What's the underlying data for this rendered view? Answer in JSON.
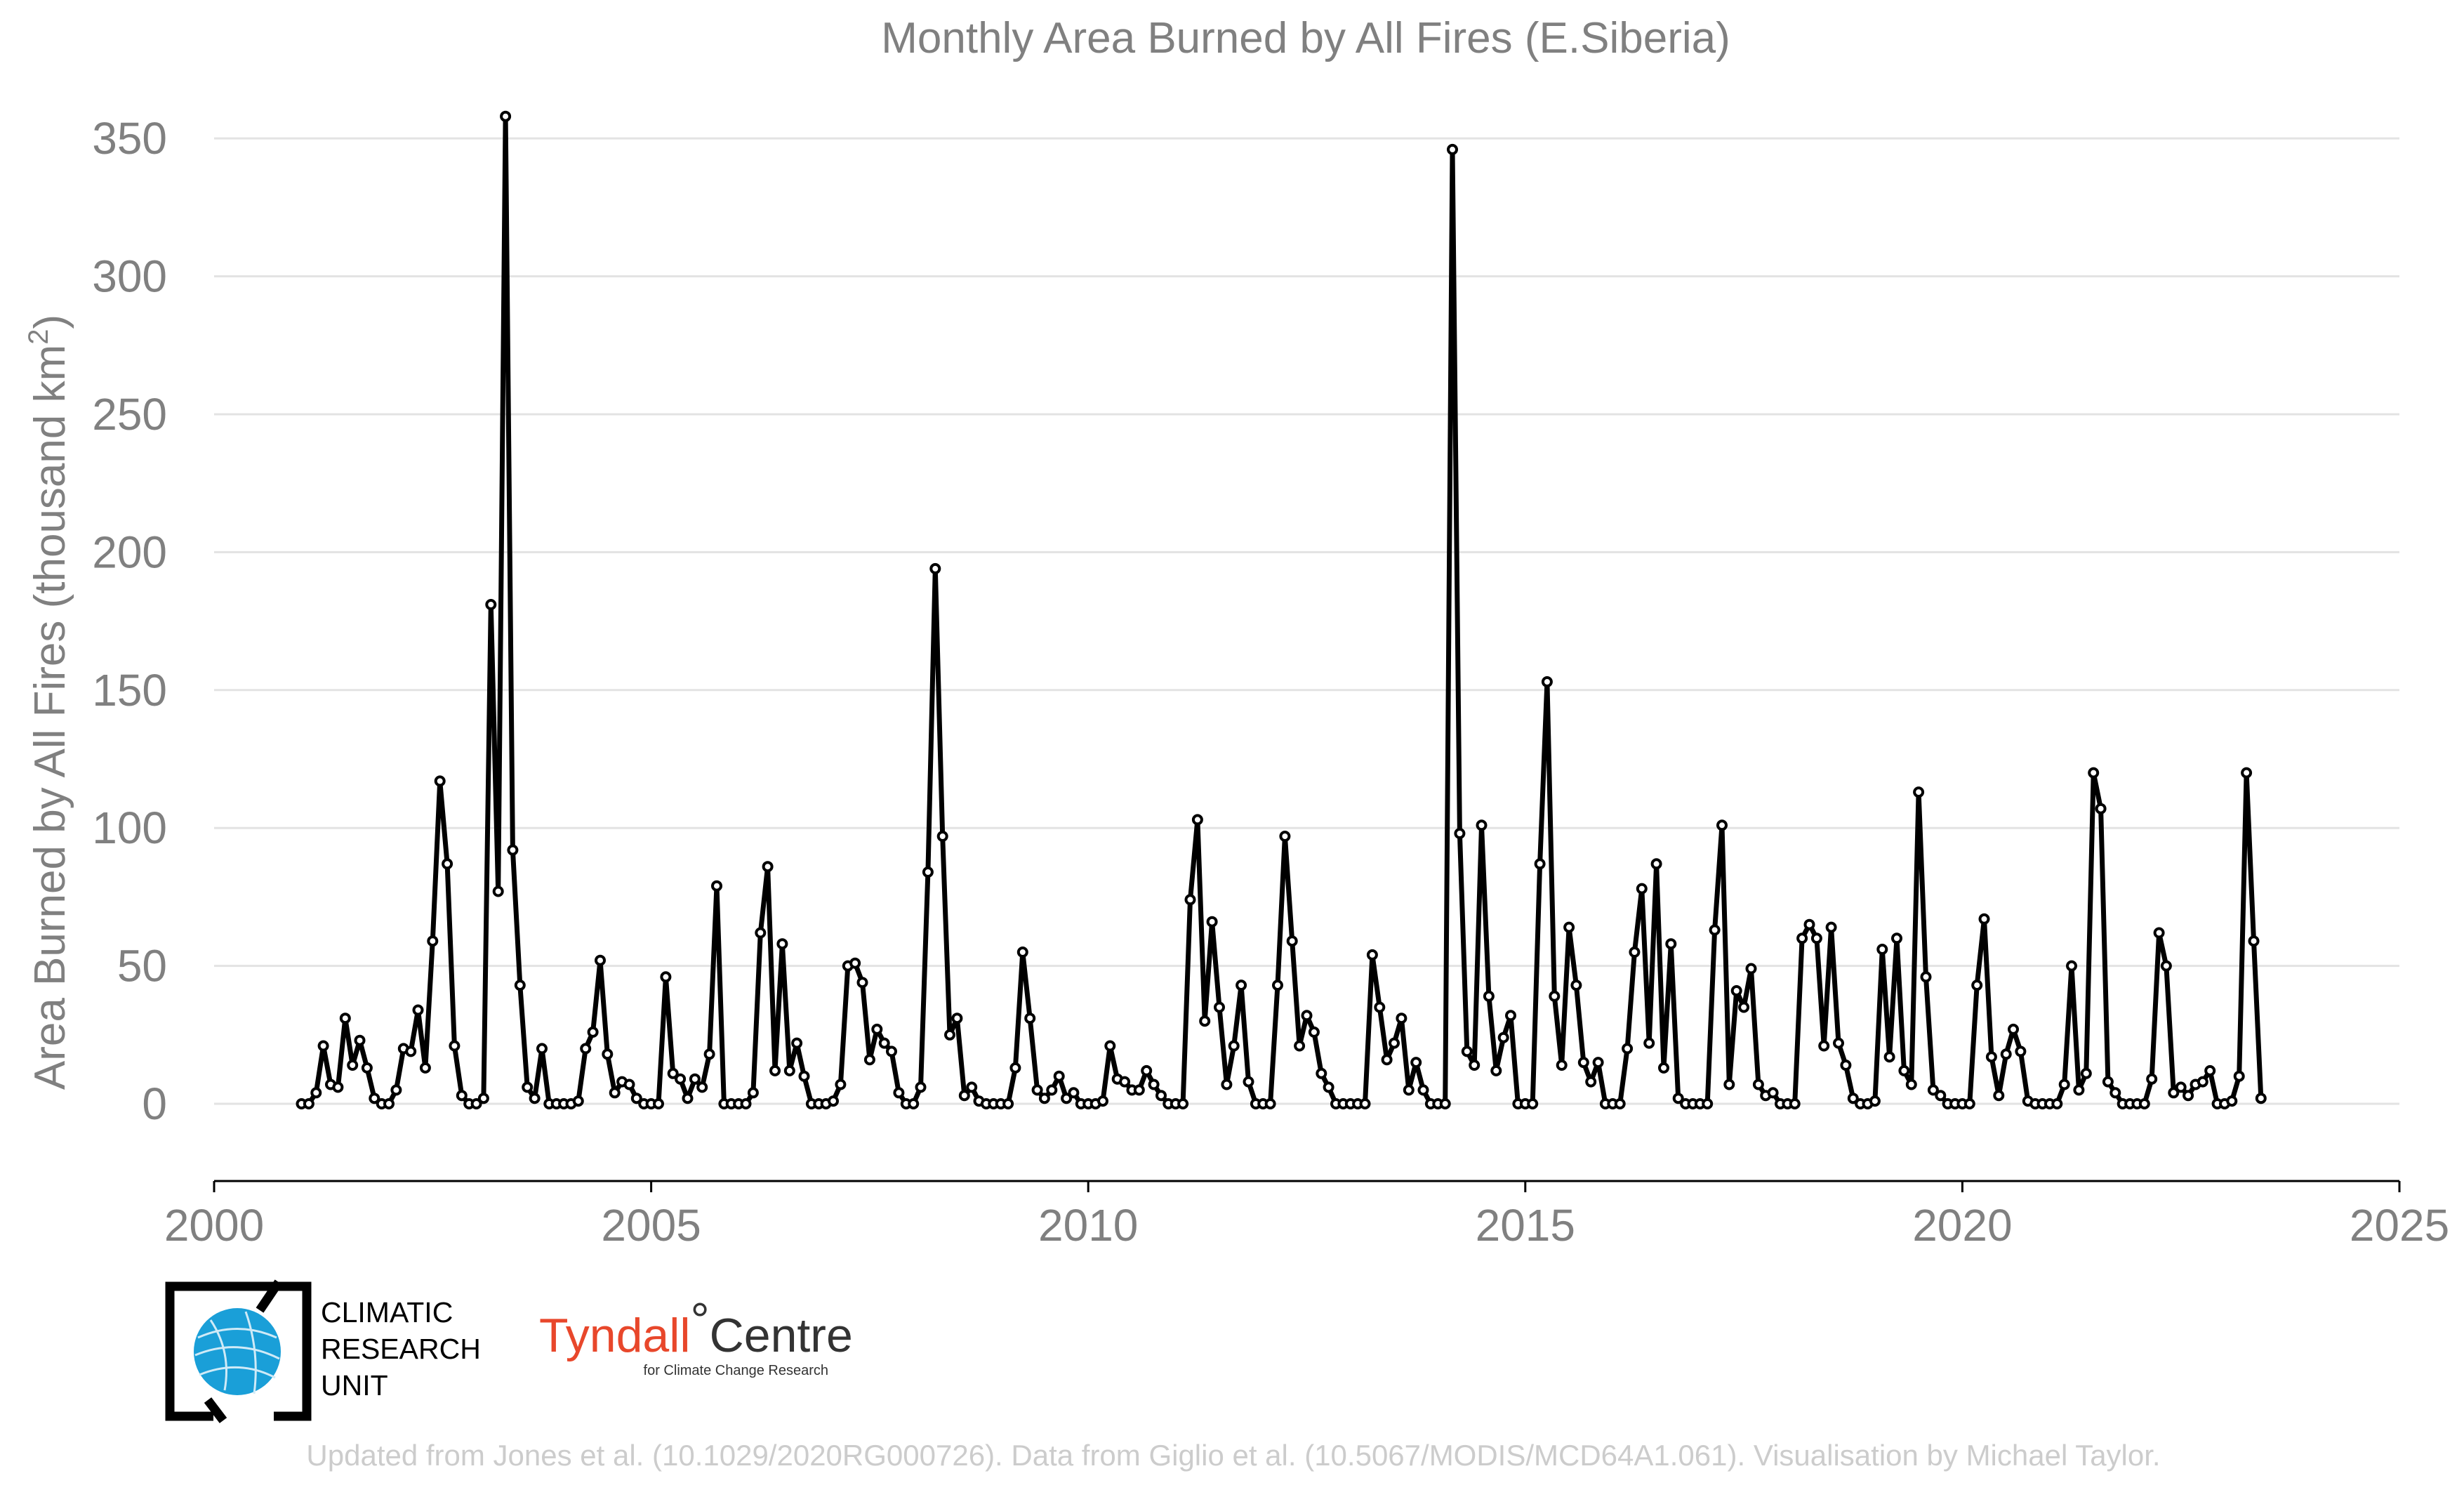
{
  "chart_data": {
    "type": "line",
    "title": "Monthly Area Burned by All Fires (E.Siberia)",
    "xlabel": "",
    "ylabel": "Area Burned by All Fires (thousand km²)",
    "xlim": [
      2000,
      2025
    ],
    "ylim": [
      -28,
      362
    ],
    "x_ticks": [
      2000,
      2005,
      2010,
      2015,
      2020,
      2025
    ],
    "y_ticks": [
      0,
      50,
      100,
      150,
      200,
      250,
      300,
      350
    ],
    "grid": "horizontal",
    "legend": "none",
    "series_start": "2001-01",
    "frequency": "monthly",
    "series": [
      {
        "color": "#000000",
        "values": [
          0,
          0,
          4,
          21,
          7,
          6,
          31,
          14,
          23,
          13,
          2,
          0,
          0,
          5,
          20,
          19,
          34,
          13,
          59,
          117,
          87,
          21,
          3,
          0,
          0,
          2,
          181,
          77,
          358,
          92,
          43,
          6,
          2,
          20,
          0,
          0,
          0,
          0,
          1,
          20,
          26,
          52,
          18,
          4,
          8,
          7,
          2,
          0,
          0,
          0,
          46,
          11,
          9,
          2,
          9,
          6,
          18,
          79,
          0,
          0,
          0,
          0,
          4,
          62,
          86,
          12,
          58,
          12,
          22,
          10,
          0,
          0,
          0,
          1,
          7,
          50,
          51,
          44,
          16,
          27,
          22,
          19,
          4,
          0,
          0,
          6,
          84,
          194,
          97,
          25,
          31,
          3,
          6,
          1,
          0,
          0,
          0,
          0,
          13,
          55,
          31,
          5,
          2,
          5,
          10,
          2,
          4,
          0,
          0,
          0,
          1,
          21,
          9,
          8,
          5,
          5,
          12,
          7,
          3,
          0,
          0,
          0,
          74,
          103,
          30,
          66,
          35,
          7,
          21,
          43,
          8,
          0,
          0,
          0,
          43,
          97,
          59,
          21,
          32,
          26,
          11,
          6,
          0,
          0,
          0,
          0,
          0,
          54,
          35,
          16,
          22,
          31,
          5,
          15,
          5,
          0,
          0,
          0,
          346,
          98,
          19,
          14,
          101,
          39,
          12,
          24,
          32,
          0,
          0,
          0,
          87,
          153,
          39,
          14,
          64,
          43,
          15,
          8,
          15,
          0,
          0,
          0,
          20,
          55,
          78,
          22,
          87,
          13,
          58,
          2,
          0,
          0,
          0,
          0,
          63,
          101,
          7,
          41,
          35,
          49,
          7,
          3,
          4,
          0,
          0,
          0,
          60,
          65,
          60,
          21,
          64,
          22,
          14,
          2,
          0,
          0,
          1,
          56,
          17,
          60,
          12,
          7,
          113,
          46,
          5,
          3,
          0,
          0,
          0,
          0,
          43,
          67,
          17,
          3,
          18,
          27,
          19,
          1,
          0,
          0,
          0,
          0,
          7,
          50,
          5,
          11,
          120,
          107,
          8,
          4,
          0,
          0,
          0,
          0,
          9,
          62,
          50,
          4,
          6,
          3,
          7,
          8,
          12,
          0,
          0,
          1,
          10,
          120,
          59,
          2
        ]
      }
    ]
  },
  "footer": {
    "cru_logo": {
      "name": "Climatic Research Unit",
      "lines": [
        "CLIMATIC",
        "RESEARCH",
        "UNIT"
      ],
      "color": "#1a9fd8"
    },
    "tyndall_logo": {
      "name": "Tyndall",
      "degree": "°",
      "centre": "Centre",
      "subtitle": "for Climate Change Research",
      "color": "#e8472b"
    },
    "credit": "Updated from Jones et al. (10.1029/2020RG000726). Data from Giglio et al. (10.5067/MODIS/MCD64A1.061). Visualisation by Michael Taylor."
  }
}
